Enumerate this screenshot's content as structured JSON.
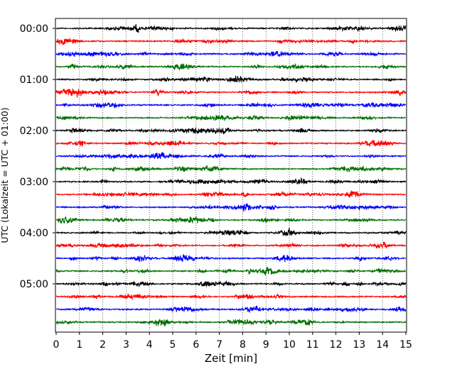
{
  "chart_data": {
    "type": "line",
    "title": "",
    "xlabel": "Zeit  [min]",
    "ylabel": "UTC (Lokalzeit = UTC + 01:00)",
    "xlim": [
      0,
      15
    ],
    "x_ticks": [
      "0",
      "1",
      "2",
      "3",
      "4",
      "5",
      "6",
      "7",
      "8",
      "9",
      "10",
      "11",
      "12",
      "13",
      "14",
      "15"
    ],
    "y_ticks": [
      "00:00",
      "01:00",
      "02:00",
      "03:00",
      "04:00",
      "05:00"
    ],
    "trace_interval_minutes": 15,
    "trace_count": 24,
    "trace_colors": [
      "#000000",
      "#ff0000",
      "#0000ff",
      "#007000"
    ],
    "grid": "vertical-dotted",
    "legend": "none"
  }
}
